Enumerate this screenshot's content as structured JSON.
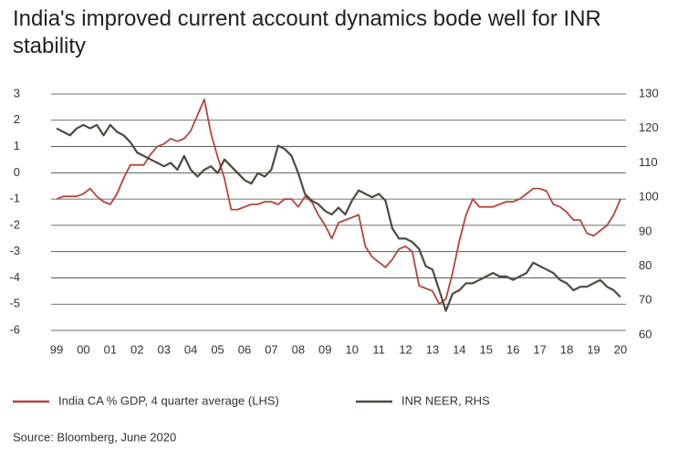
{
  "chart_data": {
    "type": "line",
    "title": "India's improved current account dynamics bode well for INR stability",
    "categories": [
      "99",
      null,
      null,
      null,
      "00",
      null,
      null,
      null,
      "01",
      null,
      null,
      null,
      "02",
      null,
      null,
      null,
      "03",
      null,
      null,
      null,
      "04",
      null,
      null,
      null,
      "05",
      null,
      null,
      null,
      "06",
      null,
      null,
      null,
      "07",
      null,
      null,
      null,
      "08",
      null,
      null,
      null,
      "09",
      null,
      null,
      null,
      "10",
      null,
      null,
      null,
      "11",
      null,
      null,
      null,
      "12",
      null,
      null,
      null,
      "13",
      null,
      null,
      null,
      "14",
      null,
      null,
      null,
      "15",
      null,
      null,
      null,
      "16",
      null,
      null,
      null,
      "17",
      null,
      null,
      null,
      "18",
      null,
      null,
      null,
      "19",
      null,
      null,
      null,
      "20"
    ],
    "series": [
      {
        "name": "India CA % GDP, 4 quarter average (LHS)",
        "color": "#b5443c",
        "values": [
          -1.0,
          -0.9,
          -0.9,
          -0.9,
          -0.8,
          -0.6,
          -0.9,
          -1.1,
          -1.2,
          -0.8,
          -0.2,
          0.3,
          0.3,
          0.3,
          0.7,
          1.0,
          1.1,
          1.3,
          1.2,
          1.3,
          1.6,
          2.2,
          2.8,
          1.5,
          0.6,
          -0.2,
          -1.4,
          -1.4,
          -1.3,
          -1.2,
          -1.2,
          -1.1,
          -1.1,
          -1.2,
          -1.0,
          -1.0,
          -1.3,
          -0.9,
          -1.1,
          -1.6,
          -2.0,
          -2.5,
          -1.9,
          -1.8,
          -1.7,
          -1.6,
          -2.8,
          -3.2,
          -3.4,
          -3.6,
          -3.3,
          -2.9,
          -2.8,
          -3.0,
          -4.3,
          -4.4,
          -4.5,
          -5.0,
          -4.8,
          -3.8,
          -2.6,
          -1.6,
          -1.0,
          -1.3,
          -1.3,
          -1.3,
          -1.2,
          -1.1,
          -1.1,
          -1.0,
          -0.8,
          -0.6,
          -0.6,
          -0.7,
          -1.2,
          -1.3,
          -1.5,
          -1.8,
          -1.8,
          -2.3,
          -2.4,
          -2.2,
          -2.0,
          -1.6,
          -1.0
        ]
      },
      {
        "name": "INR NEER, RHS",
        "color": "#4d4a3f",
        "axis": "y2",
        "values": [
          120,
          119,
          118,
          120,
          121,
          120,
          121,
          118,
          121,
          119,
          118,
          116,
          113,
          112,
          111,
          110,
          109,
          110,
          108,
          112,
          108,
          106,
          108,
          109,
          107,
          111,
          109,
          107,
          105,
          104,
          107,
          106,
          108,
          115,
          114,
          112,
          107,
          101,
          99,
          98,
          96,
          95,
          97,
          95,
          99,
          102,
          101,
          100,
          101,
          99,
          91,
          88,
          88,
          87,
          85,
          80,
          79,
          73,
          67,
          72,
          73,
          75,
          75,
          76,
          77,
          78,
          77,
          77,
          76,
          77,
          78,
          81,
          80,
          79,
          78,
          76,
          75,
          73,
          74,
          74,
          75,
          76,
          74,
          73,
          71
        ]
      }
    ],
    "ylim": [
      -6,
      3
    ],
    "yticks": [
      -6,
      -5,
      -4,
      -3,
      -2,
      -1,
      0,
      1,
      2,
      3
    ],
    "y2lim": [
      60,
      130
    ],
    "y2ticks": [
      60,
      70,
      80,
      90,
      100,
      110,
      120,
      130
    ],
    "grid": true,
    "source": "Source: Bloomberg, June 2020"
  }
}
